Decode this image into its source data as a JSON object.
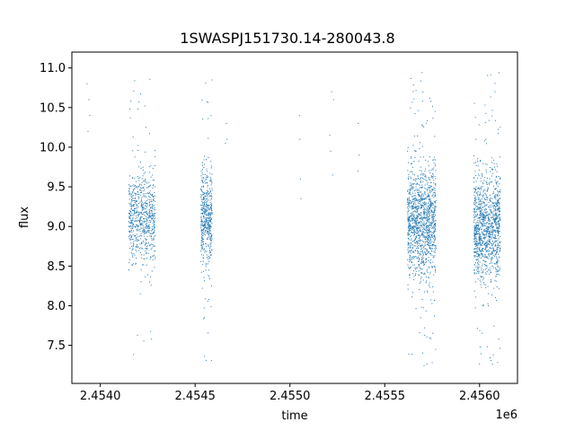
{
  "chart_data": {
    "type": "scatter",
    "title": "1SWASPJ151730.14-280043.8",
    "xlabel": "time",
    "ylabel": "flux",
    "x_offset_label": "1e6",
    "x_unit_scale": 1000000,
    "xlim": [
      2453850,
      2456200
    ],
    "ylim": [
      7.02,
      11.2
    ],
    "grid": false,
    "legend": "none",
    "color": "#1f77b4",
    "x_ticks": [
      {
        "value": 2454000,
        "label": "2.4540"
      },
      {
        "value": 2454500,
        "label": "2.4545"
      },
      {
        "value": 2455000,
        "label": "2.4550"
      },
      {
        "value": 2455500,
        "label": "2.4555"
      },
      {
        "value": 2456000,
        "label": "2.4560"
      }
    ],
    "y_ticks": [
      {
        "value": 7.5,
        "label": "7.5"
      },
      {
        "value": 8.0,
        "label": "8.0"
      },
      {
        "value": 8.5,
        "label": "8.5"
      },
      {
        "value": 9.0,
        "label": "9.0"
      },
      {
        "value": 9.5,
        "label": "9.5"
      },
      {
        "value": 10.0,
        "label": "10.0"
      },
      {
        "value": 10.5,
        "label": "10.5"
      },
      {
        "value": 11.0,
        "label": "11.0"
      }
    ],
    "series": [
      {
        "clusters": [
          {
            "x_start": 2454150,
            "x_end": 2454290,
            "y_center": 9.1,
            "y_spread": 0.28,
            "n": 700,
            "y_min": 7.25,
            "y_max": 10.95
          },
          {
            "x_start": 2454530,
            "x_end": 2454590,
            "y_center": 9.1,
            "y_spread": 0.3,
            "n": 500,
            "y_min": 7.3,
            "y_max": 10.9
          },
          {
            "x_start": 2455620,
            "x_end": 2455770,
            "y_center": 9.05,
            "y_spread": 0.33,
            "n": 1300,
            "y_min": 7.2,
            "y_max": 10.95
          },
          {
            "x_start": 2455970,
            "x_end": 2456110,
            "y_center": 9.0,
            "y_spread": 0.32,
            "n": 1200,
            "y_min": 7.2,
            "y_max": 10.95
          }
        ],
        "points": [
          [
            2453930,
            10.8
          ],
          [
            2453940,
            10.6
          ],
          [
            2453945,
            10.4
          ],
          [
            2453935,
            10.2
          ],
          [
            2454660,
            10.05
          ],
          [
            2454665,
            10.3
          ],
          [
            2454668,
            10.1
          ],
          [
            2455050,
            10.4
          ],
          [
            2455052,
            10.1
          ],
          [
            2455055,
            9.6
          ],
          [
            2455058,
            9.35
          ],
          [
            2455220,
            10.7
          ],
          [
            2455230,
            10.6
          ],
          [
            2455210,
            10.15
          ],
          [
            2455215,
            9.95
          ],
          [
            2455225,
            9.65
          ],
          [
            2455360,
            10.3
          ],
          [
            2455365,
            9.9
          ],
          [
            2455358,
            9.7
          ]
        ]
      }
    ]
  }
}
